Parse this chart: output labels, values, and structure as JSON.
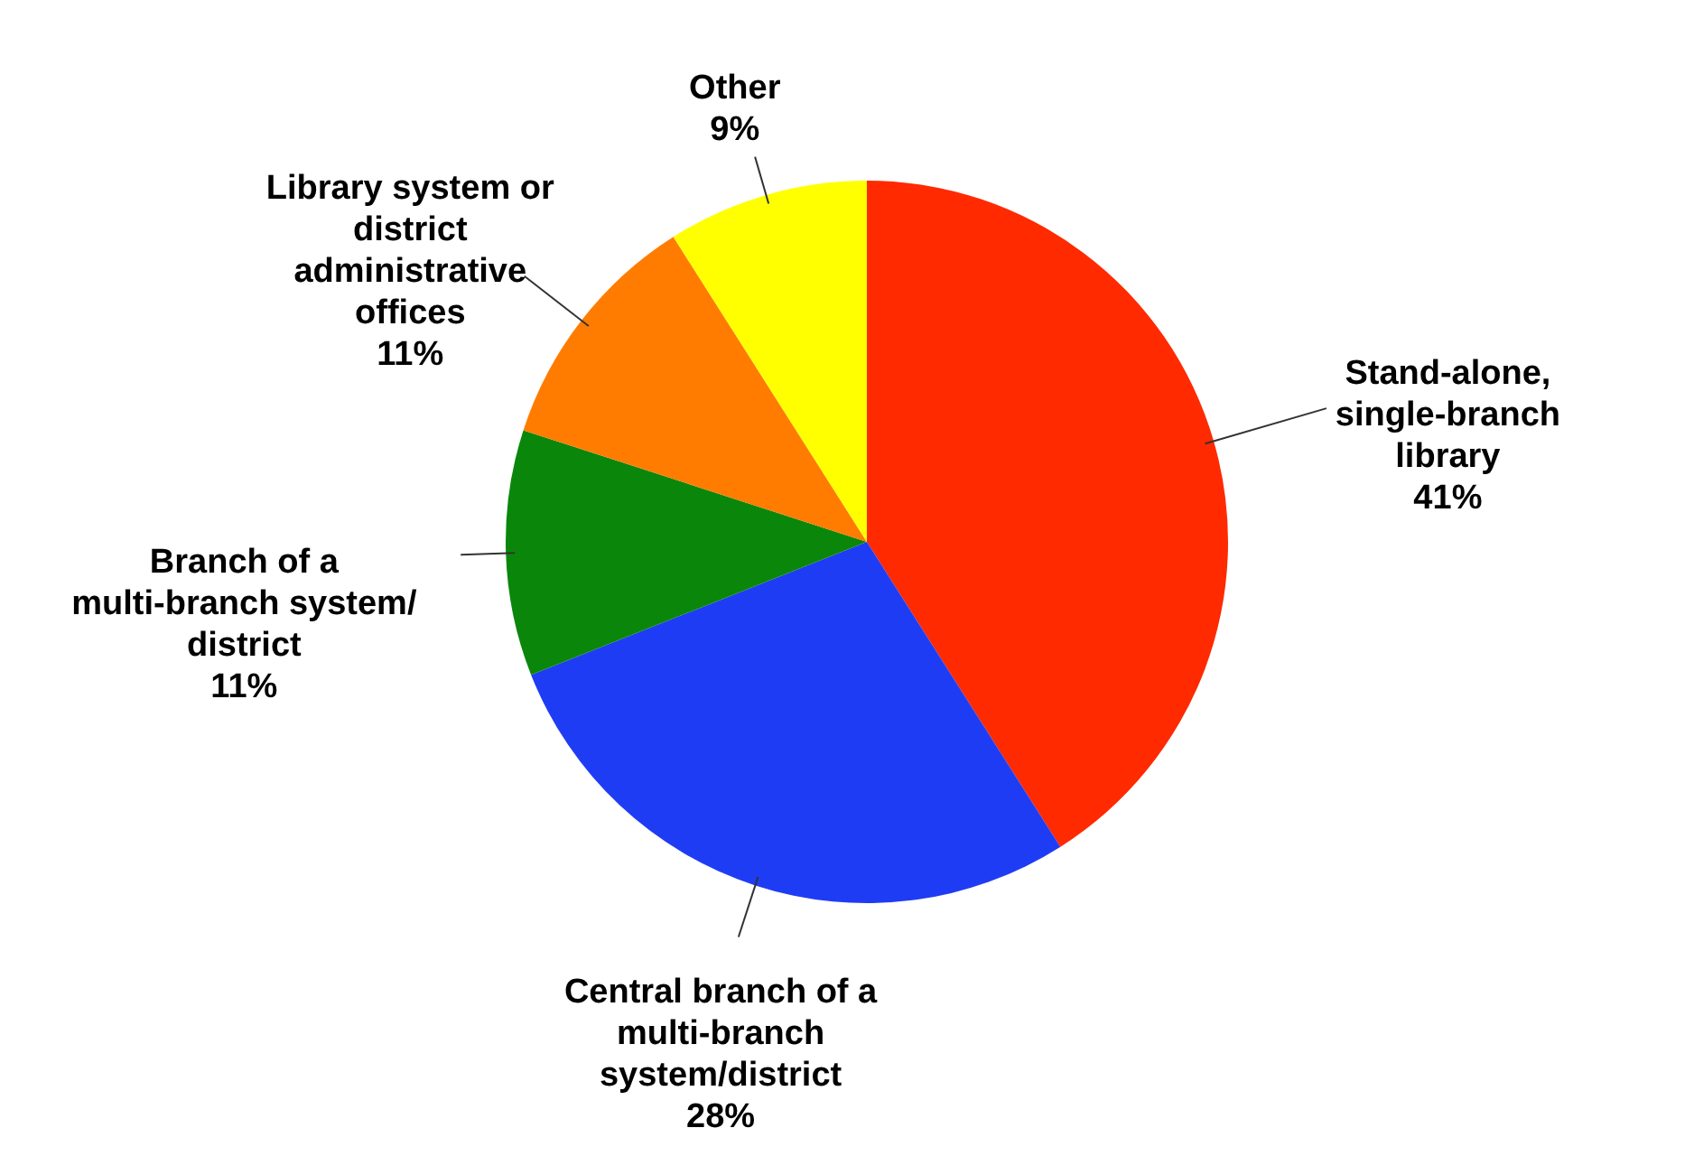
{
  "chart_data": {
    "type": "pie",
    "categories": [
      "Stand-alone, single-branch library",
      "Central branch of a multi-branch system/district",
      "Branch of a multi-branch system/ district",
      "Library system or district administrative offices",
      "Other"
    ],
    "values": [
      41,
      28,
      11,
      11,
      9
    ],
    "colors": [
      "#ff2a00",
      "#1f3cf5",
      "#0a870a",
      "#ff7c00",
      "#ffff00"
    ],
    "value_labels": [
      "41%",
      "28%",
      "11%",
      "11%",
      "9%"
    ]
  }
}
